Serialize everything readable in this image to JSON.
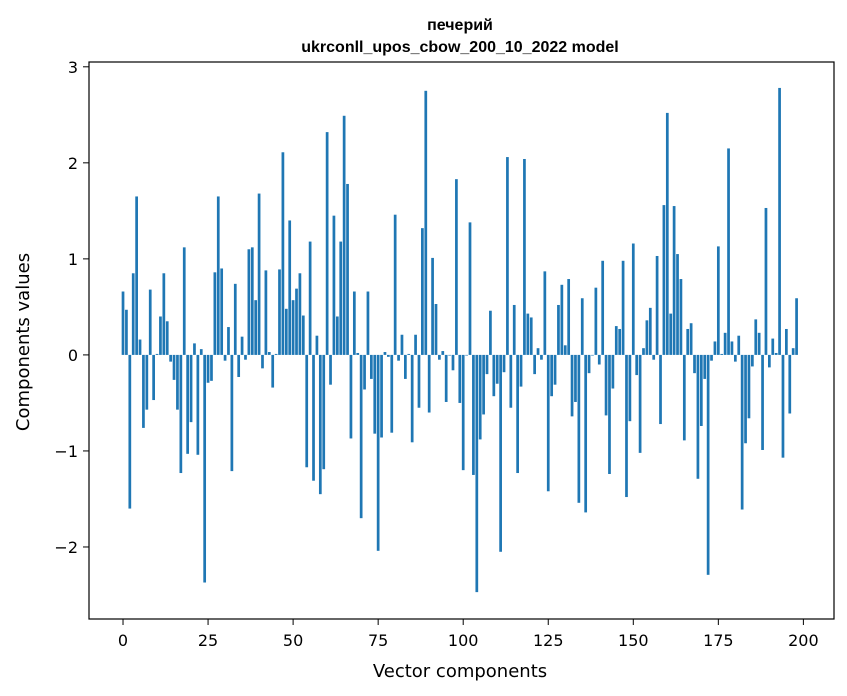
{
  "chart_data": {
    "type": "bar",
    "title_line1": "печерий",
    "title_line2": "ukrconll_upos_cbow_200_10_2022 model",
    "xlabel": "Vector components",
    "ylabel": "Components values",
    "xlim": [
      -10,
      209
    ],
    "ylim": [
      -2.75,
      3.05
    ],
    "xticks": [
      0,
      25,
      50,
      75,
      100,
      125,
      150,
      175,
      200
    ],
    "yticks": [
      3,
      2,
      1,
      0,
      -1,
      -2
    ],
    "ytick_labels": [
      "3",
      "2",
      "1",
      "0",
      "−1",
      "−2"
    ],
    "bar_color": "#1f77b4",
    "values": [
      0.66,
      0.47,
      -1.6,
      0.85,
      1.65,
      0.16,
      -0.76,
      -0.57,
      0.68,
      -0.47,
      0.01,
      0.4,
      0.85,
      0.35,
      -0.07,
      -0.26,
      -0.57,
      -1.23,
      1.12,
      -1.03,
      -0.7,
      0.12,
      -1.04,
      0.06,
      -2.37,
      -0.29,
      -0.27,
      0.86,
      1.65,
      0.9,
      -0.06,
      0.29,
      -1.21,
      0.74,
      -0.23,
      0.19,
      -0.05,
      1.1,
      1.12,
      0.57,
      1.68,
      -0.14,
      0.88,
      0.03,
      -0.34,
      0.01,
      0.89,
      2.11,
      0.48,
      1.4,
      0.57,
      0.69,
      0.85,
      0.41,
      -1.17,
      1.18,
      -1.31,
      0.2,
      -1.45,
      -1.19,
      2.32,
      -0.31,
      1.45,
      0.4,
      1.18,
      2.49,
      1.78,
      -0.87,
      0.66,
      0.02,
      -1.7,
      -0.36,
      0.66,
      -0.25,
      -0.82,
      -2.04,
      -0.86,
      0.03,
      -0.02,
      -0.81,
      1.46,
      -0.06,
      0.21,
      -0.25,
      0.01,
      -0.91,
      0.21,
      -0.55,
      1.32,
      2.75,
      -0.6,
      1.01,
      0.53,
      -0.05,
      0.04,
      -0.49,
      0.0,
      -0.16,
      1.83,
      -0.5,
      -1.2,
      0.0,
      1.38,
      -1.25,
      -2.47,
      -0.88,
      -0.62,
      -0.2,
      0.46,
      -0.43,
      -0.3,
      -2.05,
      -0.18,
      2.06,
      -0.55,
      0.52,
      -1.23,
      -0.33,
      2.04,
      0.43,
      0.39,
      -0.2,
      0.07,
      -0.05,
      0.87,
      -1.42,
      -0.43,
      -0.31,
      0.52,
      0.73,
      0.1,
      0.79,
      -0.64,
      -0.49,
      -1.54,
      0.59,
      -1.64,
      -0.19,
      0.0,
      0.7,
      -0.1,
      0.98,
      -0.63,
      -1.24,
      -0.35,
      0.3,
      0.27,
      0.98,
      -1.48,
      -0.69,
      1.16,
      -0.21,
      -1.02,
      0.07,
      0.36,
      0.49,
      -0.05,
      1.03,
      -0.72,
      1.56,
      2.52,
      0.43,
      1.55,
      1.05,
      0.79,
      -0.89,
      0.27,
      0.33,
      -0.19,
      -1.29,
      -0.74,
      -0.25,
      -2.29,
      -0.06,
      0.14,
      1.13,
      0.01,
      0.23,
      2.15,
      0.14,
      -0.07,
      0.2,
      -1.61,
      -0.92,
      -0.66,
      -0.12,
      0.37,
      0.23,
      -0.99,
      1.53,
      -0.13,
      0.17,
      0.02,
      2.78,
      -1.07,
      0.27,
      -0.61,
      0.07,
      0.59
    ]
  }
}
